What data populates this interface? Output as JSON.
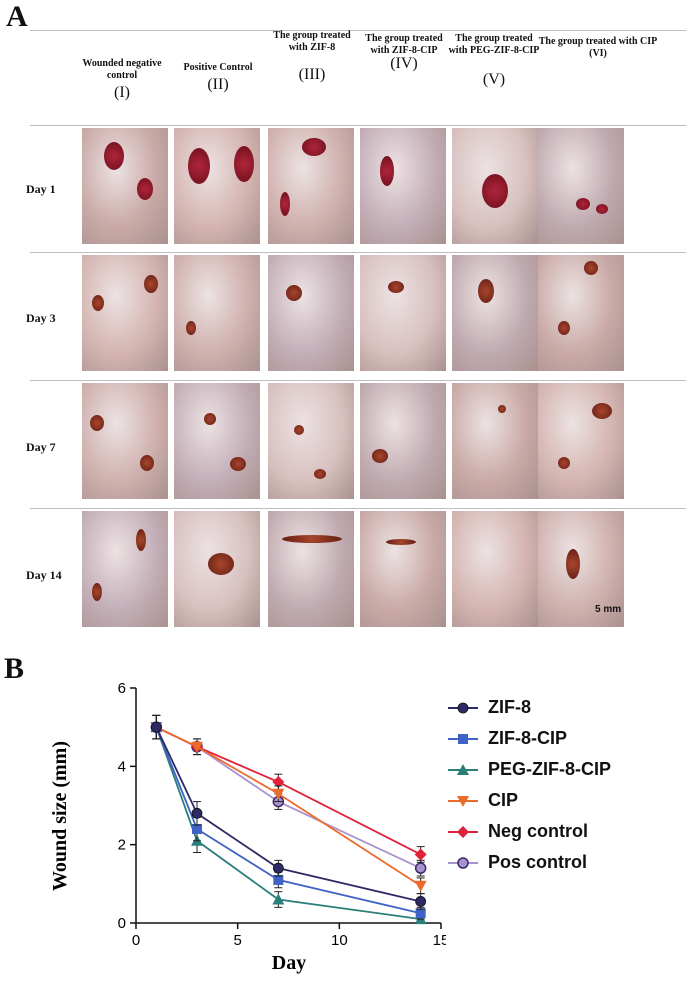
{
  "panel_a": {
    "letter": "A",
    "columns": [
      {
        "title": "Wounded negative control",
        "roman": "(I)"
      },
      {
        "title": "Positive Control",
        "roman": "(II)"
      },
      {
        "title": "The group treated with ZIF-8",
        "roman": "(III)"
      },
      {
        "title": "The group treated with ZIF-8-CIP",
        "roman": "(IV)"
      },
      {
        "title": "The group treated with PEG-ZIF-8-CIP",
        "roman": "(V)"
      },
      {
        "title": "The group treated with CIP (VI)",
        "roman": ""
      }
    ],
    "rows": [
      "Day 1",
      "Day 3",
      "Day 7",
      "Day 14"
    ],
    "scale_bar": "5 mm"
  },
  "panel_b": {
    "letter": "B"
  },
  "colors": {
    "ZIF-8": "#2e2a66",
    "ZIF-8-CIP": "#3f63c4",
    "PEG-ZIF-8-CIP": "#2a7f7a",
    "CIP": "#ec6a2b",
    "Neg control": "#e0213a",
    "Pos control": "#a993cf"
  },
  "chart_data": {
    "type": "line",
    "xlabel": "Day",
    "ylabel": "Wound size (mm)",
    "xlim": [
      0,
      15
    ],
    "ylim": [
      0,
      6
    ],
    "xticks": [
      0,
      5,
      10,
      15
    ],
    "yticks": [
      0,
      2,
      4,
      6
    ],
    "x": [
      1,
      3,
      7,
      14
    ],
    "grid": false,
    "legend_position": "right",
    "series": [
      {
        "name": "ZIF-8",
        "marker": "circle",
        "values": [
          5.0,
          2.8,
          1.4,
          0.55
        ],
        "errors": [
          0.3,
          0.3,
          0.2,
          0.2
        ]
      },
      {
        "name": "ZIF-8-CIP",
        "marker": "square",
        "values": [
          5.0,
          2.4,
          1.1,
          0.25
        ],
        "errors": [
          0.3,
          0.3,
          0.2,
          0.15
        ]
      },
      {
        "name": "PEG-ZIF-8-CIP",
        "marker": "triangle",
        "values": [
          5.0,
          2.1,
          0.6,
          0.1
        ],
        "errors": [
          0.3,
          0.3,
          0.2,
          0.1
        ]
      },
      {
        "name": "CIP",
        "marker": "triangle-down",
        "values": [
          5.0,
          4.5,
          3.3,
          0.95
        ],
        "errors": [
          0.3,
          0.2,
          0.2,
          0.2
        ]
      },
      {
        "name": "Neg control",
        "marker": "diamond",
        "values": [
          5.0,
          4.5,
          3.6,
          1.75
        ],
        "errors": [
          0.3,
          0.2,
          0.2,
          0.2
        ]
      },
      {
        "name": "Pos control",
        "marker": "circle-open",
        "values": [
          5.0,
          4.5,
          3.1,
          1.4
        ],
        "errors": [
          0.3,
          0.2,
          0.2,
          0.2
        ]
      }
    ]
  }
}
